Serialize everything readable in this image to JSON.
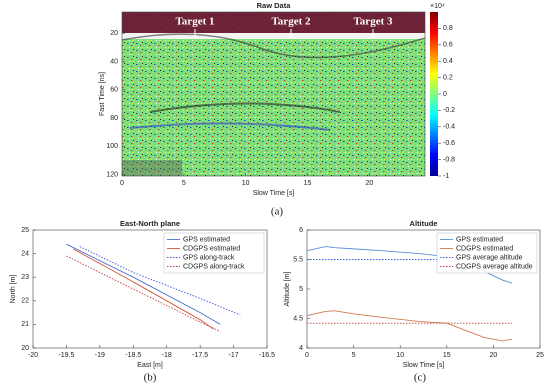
{
  "chart_data": [
    {
      "type": "image",
      "title": "Raw Data",
      "xlabel": "Slow Time [s]",
      "ylabel": "Fast Time [ns]",
      "xlim": [
        0,
        24.5
      ],
      "ylim": [
        121,
        5
      ],
      "xticks": [
        0,
        5,
        10,
        15,
        20
      ],
      "yticks": [
        20,
        40,
        60,
        80,
        100,
        120
      ],
      "colorbar": {
        "clim": [
          -1,
          1
        ],
        "ticks": [
          0.8,
          0.6,
          0.4,
          0.2,
          0,
          -0.2,
          -0.4,
          -0.6,
          -0.8,
          -1
        ],
        "exponent": "×10⁴"
      },
      "annotations": [
        "Target 1",
        "Target 2",
        "Target 3"
      ],
      "panel_label": "(a)"
    },
    {
      "type": "line",
      "title": "East-North plane",
      "xlabel": "East [m]",
      "ylabel": "North [m]",
      "xlim": [
        -20,
        -16.5
      ],
      "ylim": [
        20,
        25
      ],
      "xticks": [
        -20,
        -19.5,
        -19,
        -18.5,
        -18,
        -17.5,
        -17,
        -16.5
      ],
      "yticks": [
        20,
        21,
        22,
        23,
        24,
        25
      ],
      "legend": "upper right",
      "panel_label": "(b)",
      "series": [
        {
          "name": "GPS estimated",
          "color": "#4a6fd1",
          "dash": false,
          "x": [
            -19.5,
            -18.5,
            -17.5,
            -17.2
          ],
          "values": [
            24.4,
            23.0,
            21.5,
            21.0
          ]
        },
        {
          "name": "CDGPS estimated",
          "color": "#d0583a",
          "dash": false,
          "x": [
            -19.4,
            -18.5,
            -17.5,
            -17.3
          ],
          "values": [
            24.2,
            22.8,
            21.2,
            20.8
          ]
        },
        {
          "name": "GPS along-track",
          "color": "#3b5bdb",
          "dash": true,
          "x": [
            -19.3,
            -18.5,
            -17.5,
            -16.9
          ],
          "values": [
            24.3,
            23.2,
            22.1,
            21.4
          ]
        },
        {
          "name": "CDGPS along-track",
          "color": "#c43a3a",
          "dash": true,
          "x": [
            -19.5,
            -18.5,
            -17.5,
            -17.2
          ],
          "values": [
            23.9,
            22.5,
            21.1,
            20.7
          ]
        }
      ]
    },
    {
      "type": "line",
      "title": "Altitude",
      "xlabel": "Slow Time [s]",
      "ylabel": "Altitude [m]",
      "xlim": [
        0,
        25
      ],
      "ylim": [
        4,
        6
      ],
      "xticks": [
        0,
        5,
        10,
        15,
        20,
        25
      ],
      "yticks": [
        4,
        4.5,
        5,
        5.5,
        6
      ],
      "legend": "upper right",
      "panel_label": "(c)",
      "series": [
        {
          "name": "GPS estimated",
          "color": "#5b8fd6",
          "dash": false,
          "x": [
            0,
            2,
            3,
            5,
            8,
            12,
            15,
            17,
            19,
            21,
            22
          ],
          "values": [
            5.65,
            5.72,
            5.7,
            5.68,
            5.65,
            5.6,
            5.55,
            5.45,
            5.3,
            5.15,
            5.1
          ]
        },
        {
          "name": "CDGPS estimated",
          "color": "#d07a55",
          "dash": false,
          "x": [
            0,
            2,
            3,
            5,
            8,
            12,
            15,
            17,
            19,
            21,
            22
          ],
          "values": [
            4.55,
            4.62,
            4.63,
            4.58,
            4.52,
            4.45,
            4.42,
            4.3,
            4.18,
            4.12,
            4.15
          ]
        },
        {
          "name": "GPS average altitude",
          "color": "#3b5bdb",
          "dash": true,
          "x": [
            0,
            22
          ],
          "values": [
            5.5,
            5.5
          ]
        },
        {
          "name": "CDGPS average altitude",
          "color": "#c43a3a",
          "dash": true,
          "x": [
            0,
            22
          ],
          "values": [
            4.42,
            4.42
          ]
        }
      ]
    }
  ]
}
